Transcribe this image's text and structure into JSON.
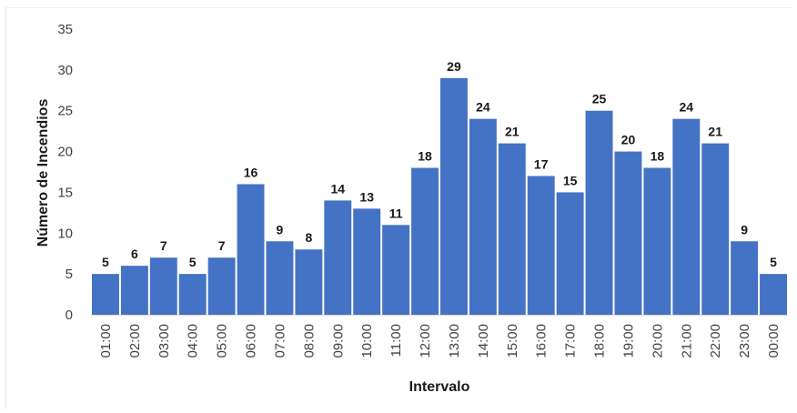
{
  "chart_data": {
    "type": "bar",
    "title": "",
    "xlabel": "Intervalo",
    "ylabel": "Número de Incendios",
    "ylim": [
      0,
      35
    ],
    "yticks": [
      0,
      5,
      10,
      15,
      20,
      25,
      30,
      35
    ],
    "grid": false,
    "legend": "none",
    "bar_color": "#4472c4",
    "categories": [
      "01:00",
      "02:00",
      "03:00",
      "04:00",
      "05:00",
      "06:00",
      "07:00",
      "08:00",
      "09:00",
      "10:00",
      "11:00",
      "12:00",
      "13:00",
      "14:00",
      "15:00",
      "16:00",
      "17:00",
      "18:00",
      "19:00",
      "20:00",
      "21:00",
      "22:00",
      "23:00",
      "00:00"
    ],
    "values": [
      5,
      6,
      7,
      5,
      7,
      16,
      9,
      8,
      14,
      13,
      11,
      18,
      29,
      24,
      21,
      17,
      15,
      25,
      20,
      18,
      24,
      21,
      9,
      5
    ]
  }
}
